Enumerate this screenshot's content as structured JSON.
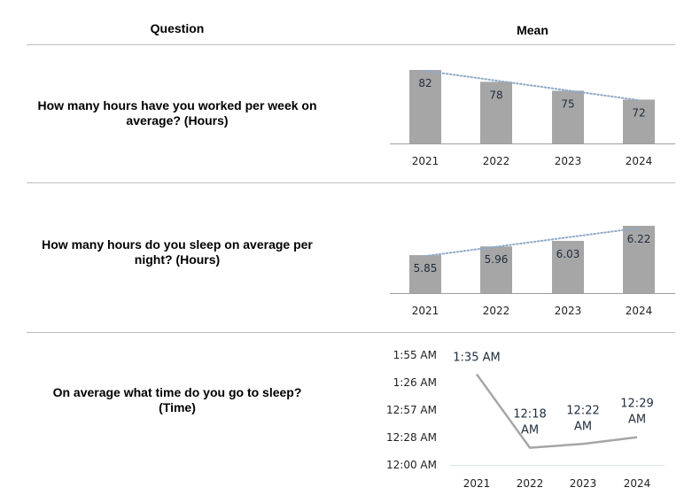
{
  "header": {
    "question": "Question",
    "mean": "Mean"
  },
  "rows": [
    {
      "question": "How many hours have you worked per week on average? (Hours)"
    },
    {
      "question": "How many hours do you sleep on average per night? (Hours)"
    },
    {
      "question": "On average what time do you go to sleep? (Time)"
    }
  ],
  "chart_data": [
    {
      "type": "bar",
      "categories": [
        "2021",
        "2022",
        "2023",
        "2024"
      ],
      "values": [
        82,
        78,
        75,
        72
      ],
      "data_labels": [
        "82",
        "78",
        "75",
        "72"
      ],
      "trendline": "linear, dotted",
      "bar_color": "#a6a6a6",
      "trend_color": "#8eaac8"
    },
    {
      "type": "bar",
      "categories": [
        "2021",
        "2022",
        "2023",
        "2024"
      ],
      "values": [
        5.85,
        5.96,
        6.03,
        6.22
      ],
      "data_labels": [
        "5.85",
        "5.96",
        "6.03",
        "6.22"
      ],
      "trendline": "linear, dotted",
      "bar_color": "#a6a6a6",
      "trend_color": "#8eaac8"
    },
    {
      "type": "line",
      "categories": [
        "2021",
        "2022",
        "2023",
        "2024"
      ],
      "values_minutes_after_midnight": [
        95,
        18,
        22,
        29
      ],
      "data_labels": [
        "1:35 AM",
        "12:18 AM",
        "12:22 AM",
        "12:29 AM"
      ],
      "yticks": [
        "12:00 AM",
        "12:28 AM",
        "12:57 AM",
        "1:26 AM",
        "1:55 AM"
      ],
      "ylim_minutes": [
        0,
        115
      ],
      "line_color": "#a6a6a6"
    }
  ]
}
